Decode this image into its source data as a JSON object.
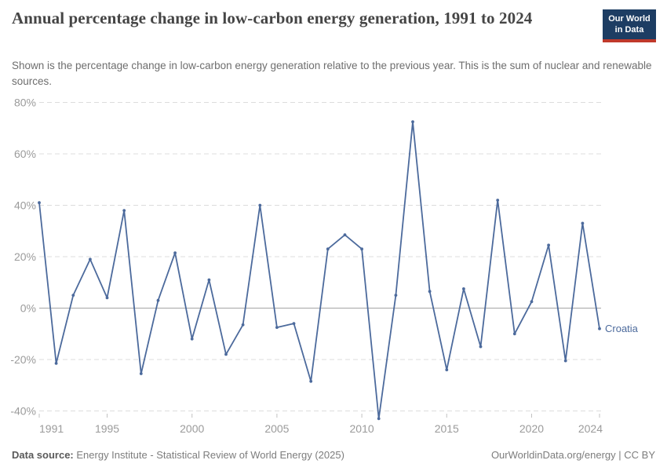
{
  "header": {
    "title": "Annual percentage change in low-carbon energy generation, 1991 to 2024",
    "subtitle": "Shown is the percentage change in low-carbon energy generation relative to the previous year. This is the sum of nuclear and renewable sources.",
    "logo": {
      "line1": "Our World",
      "line2": "in Data",
      "bg_color": "#1d3d63",
      "bar_color": "#c0392b"
    }
  },
  "footer": {
    "datasource_label": "Data source:",
    "datasource_value": "Energy Institute - Statistical Review of World Energy (2025)",
    "rights": "OurWorldinData.org/energy | CC BY"
  },
  "chart_data": {
    "type": "line",
    "title": "Annual percentage change in low-carbon energy generation, 1991 to 2024",
    "x": [
      1991,
      1992,
      1993,
      1994,
      1995,
      1996,
      1997,
      1998,
      1999,
      2000,
      2001,
      2002,
      2003,
      2004,
      2005,
      2006,
      2007,
      2008,
      2009,
      2010,
      2011,
      2012,
      2013,
      2014,
      2015,
      2016,
      2017,
      2018,
      2019,
      2020,
      2021,
      2022,
      2023,
      2024
    ],
    "series": [
      {
        "name": "Croatia",
        "color": "#4C6A9C",
        "values": [
          41,
          -21.5,
          5,
          19,
          4,
          38,
          -25.5,
          3,
          21.5,
          -12,
          11,
          -18,
          -6.5,
          40,
          -7.5,
          -6,
          -28.5,
          23,
          28.5,
          23,
          -43,
          5,
          72.5,
          6.5,
          -24,
          7.5,
          -15,
          42,
          -10,
          2.5,
          24.5,
          -20.5,
          33,
          -8
        ]
      }
    ],
    "ylabel": "",
    "xlabel": "",
    "ylim": [
      -46,
      84
    ],
    "yticks": [
      80,
      60,
      40,
      20,
      0,
      -20,
      -40
    ],
    "ytick_suffix": "%",
    "xticks": [
      1991,
      1995,
      2000,
      2005,
      2010,
      2015,
      2020,
      2024
    ],
    "grid": "horizontal-dashed",
    "legend": "line-end-label"
  }
}
